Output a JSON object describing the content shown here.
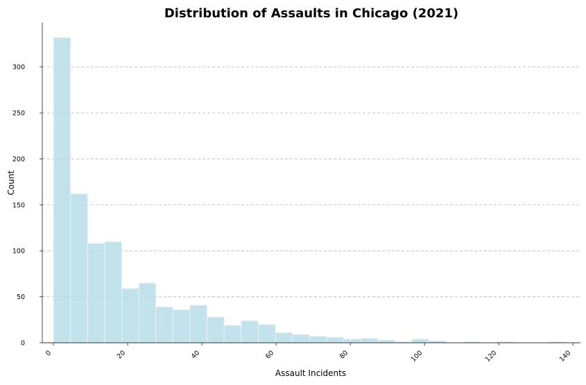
{
  "chart_data": {
    "type": "bar",
    "subtype": "histogram",
    "title": "Distribution of Assaults in Chicago (2021)",
    "xlabel": "Assault Incidents",
    "ylabel": "Count",
    "xlim": [
      -3,
      142
    ],
    "ylim": [
      0,
      348
    ],
    "bin_width": 4.6,
    "bin_start": 0,
    "bins": [
      {
        "x0": 0,
        "x1": 4.6,
        "count": 332
      },
      {
        "x0": 4.6,
        "x1": 9.2,
        "count": 162
      },
      {
        "x0": 9.2,
        "x1": 13.8,
        "count": 108
      },
      {
        "x0": 13.8,
        "x1": 18.4,
        "count": 110
      },
      {
        "x0": 18.4,
        "x1": 23.0,
        "count": 59
      },
      {
        "x0": 23.0,
        "x1": 27.6,
        "count": 65
      },
      {
        "x0": 27.6,
        "x1": 32.2,
        "count": 39
      },
      {
        "x0": 32.2,
        "x1": 36.8,
        "count": 36
      },
      {
        "x0": 36.8,
        "x1": 41.4,
        "count": 41
      },
      {
        "x0": 41.4,
        "x1": 46.0,
        "count": 28
      },
      {
        "x0": 46.0,
        "x1": 50.6,
        "count": 19
      },
      {
        "x0": 50.6,
        "x1": 55.2,
        "count": 24
      },
      {
        "x0": 55.2,
        "x1": 59.8,
        "count": 20
      },
      {
        "x0": 59.8,
        "x1": 64.4,
        "count": 11
      },
      {
        "x0": 64.4,
        "x1": 69.0,
        "count": 9
      },
      {
        "x0": 69.0,
        "x1": 73.6,
        "count": 7
      },
      {
        "x0": 73.6,
        "x1": 78.2,
        "count": 6
      },
      {
        "x0": 78.2,
        "x1": 82.8,
        "count": 4
      },
      {
        "x0": 82.8,
        "x1": 87.4,
        "count": 5
      },
      {
        "x0": 87.4,
        "x1": 92.0,
        "count": 3
      },
      {
        "x0": 92.0,
        "x1": 96.6,
        "count": 1
      },
      {
        "x0": 96.6,
        "x1": 101.2,
        "count": 4
      },
      {
        "x0": 101.2,
        "x1": 105.8,
        "count": 2
      },
      {
        "x0": 105.8,
        "x1": 110.4,
        "count": 0
      },
      {
        "x0": 110.4,
        "x1": 115.0,
        "count": 1
      },
      {
        "x0": 115.0,
        "x1": 119.6,
        "count": 0
      },
      {
        "x0": 119.6,
        "x1": 124.2,
        "count": 1
      },
      {
        "x0": 124.2,
        "x1": 128.8,
        "count": 0
      },
      {
        "x0": 128.8,
        "x1": 133.4,
        "count": 0
      },
      {
        "x0": 133.4,
        "x1": 138.0,
        "count": 1
      }
    ],
    "x_ticks": [
      0,
      20,
      40,
      60,
      80,
      100,
      120,
      140
    ],
    "y_ticks": [
      0,
      50,
      100,
      150,
      200,
      250,
      300
    ],
    "grid": {
      "x": false,
      "y": true,
      "style": "dashed"
    },
    "legend": "none",
    "colors": {
      "bar_fill": "#add8e6",
      "bar_edge": "#ffffff",
      "grid": "#bdbdbd"
    }
  }
}
